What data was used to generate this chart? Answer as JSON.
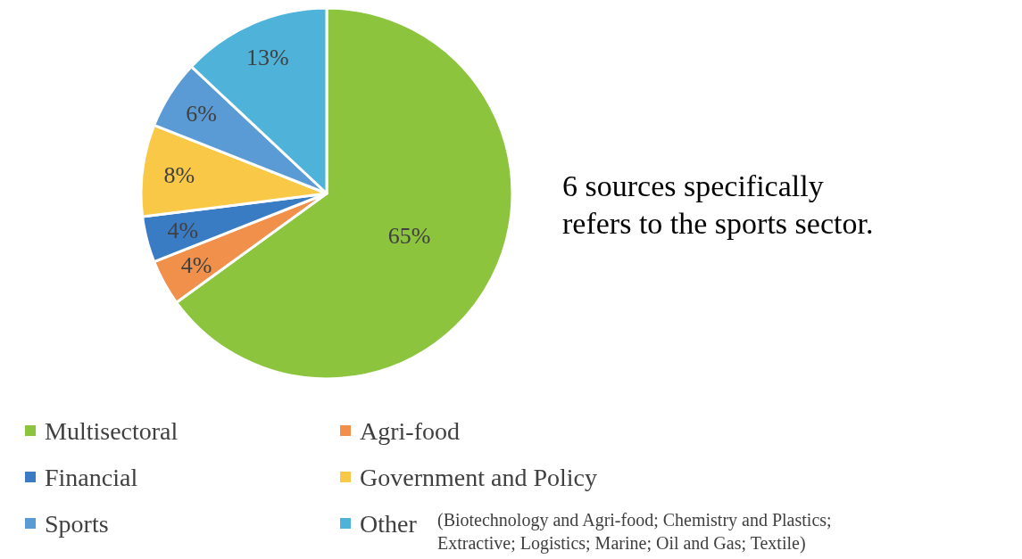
{
  "chart_data": {
    "type": "pie",
    "categories": [
      "Multisectoral",
      "Agri-food",
      "Financial",
      "Government and Policy",
      "Sports",
      "Other"
    ],
    "values": [
      65,
      4,
      4,
      8,
      6,
      13
    ],
    "colors": [
      "#8cc43e",
      "#f0904a",
      "#3a7cc4",
      "#f8c846",
      "#5b9bd5",
      "#4fb3d9"
    ],
    "value_labels": [
      "65%",
      "4%",
      "4%",
      "8%",
      "6%",
      "13%"
    ],
    "legend": "bottom",
    "annotations": [
      "6 sources specifically refers to the sports sector.",
      "(Biotechnology and Agri-food; Chemistry and Plastics; Extractive; Logistics; Marine; Oil and Gas; Textile)"
    ]
  }
}
